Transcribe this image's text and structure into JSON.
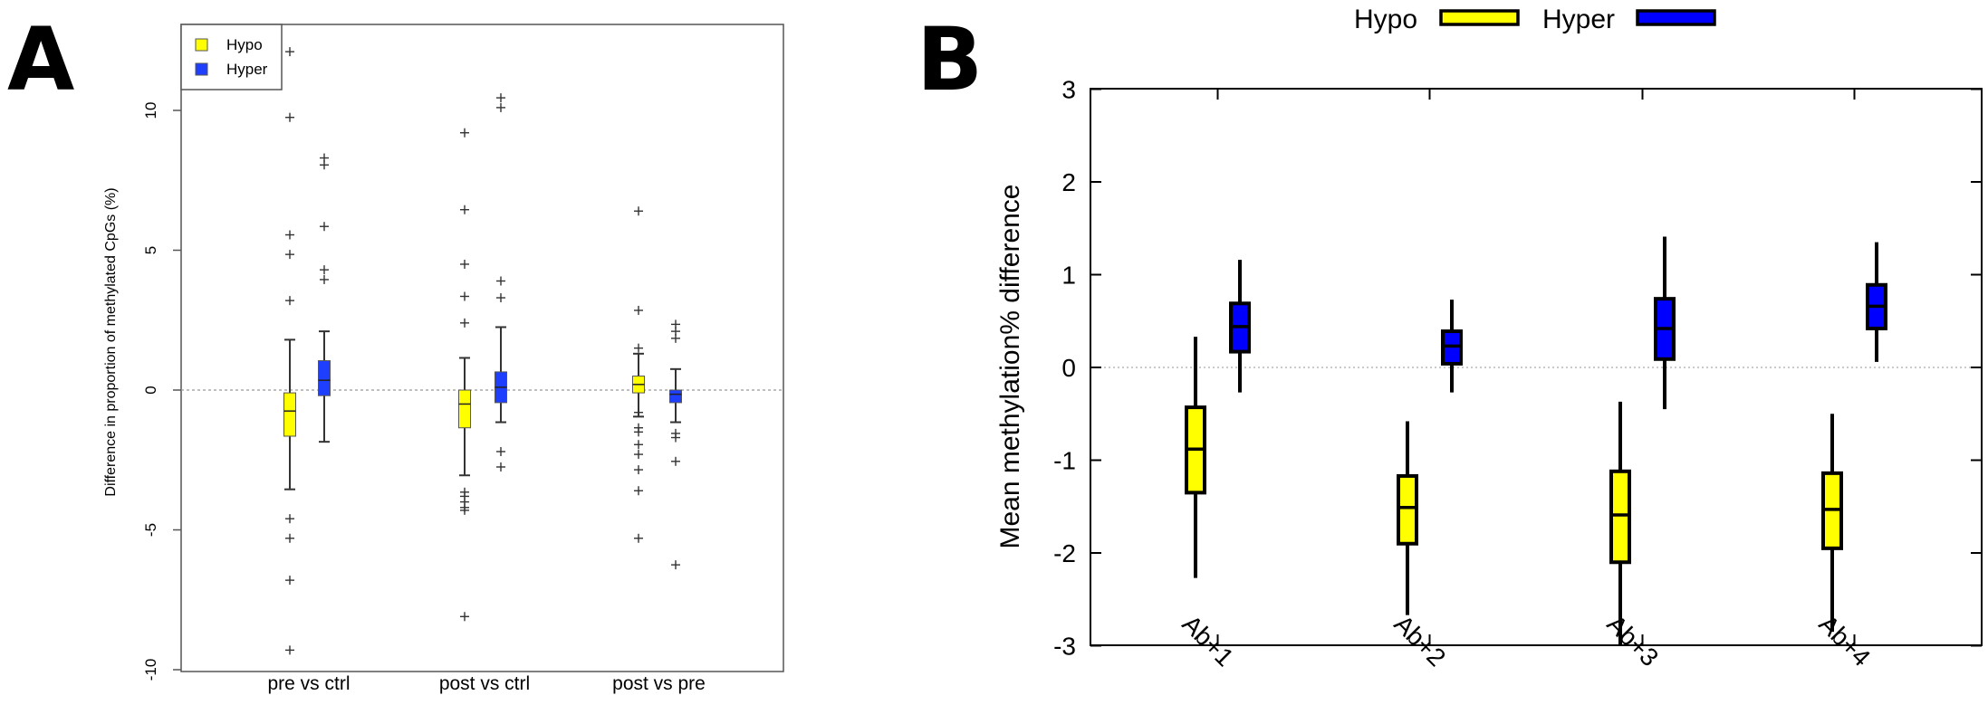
{
  "panels": {
    "a_letter": "A",
    "b_letter": "B"
  },
  "chart_data": [
    {
      "type": "box",
      "panel": "A",
      "title": "",
      "ylabel": "Difference in proportion of methylated CpGs (%)",
      "xlabel": "",
      "ylim": [
        -10,
        12.5
      ],
      "yticks": [
        "-10",
        "-5",
        "0",
        "5",
        "10"
      ],
      "categories": [
        "pre vs ctrl",
        "post vs ctrl",
        "post vs pre"
      ],
      "reference_line": 0,
      "legend": {
        "position": "top-left",
        "entries": [
          "Hypo",
          "Hyper"
        ]
      },
      "series": [
        {
          "name": "Hypo",
          "color": "#ffff00",
          "boxes": [
            {
              "whisker_low": -3.55,
              "q1": -1.65,
              "median": -0.75,
              "q3": -0.1,
              "whisker_high": 1.8,
              "outliers": [
                12.1,
                9.75,
                5.55,
                4.85,
                3.2,
                -4.6,
                -5.3,
                -6.8,
                -9.3
              ]
            },
            {
              "whisker_low": -3.05,
              "q1": -1.35,
              "median": -0.5,
              "q3": 0.0,
              "whisker_high": 1.15,
              "outliers": [
                9.2,
                6.45,
                4.5,
                3.35,
                2.4,
                -3.65,
                -3.8,
                -4.0,
                -4.2,
                -4.3,
                -8.1
              ]
            },
            {
              "whisker_low": -0.95,
              "q1": -0.1,
              "median": 0.2,
              "q3": 0.5,
              "whisker_high": 1.3,
              "outliers": [
                6.4,
                2.85,
                1.5,
                -0.8,
                -1.35,
                -1.5,
                -1.95,
                -2.3,
                -2.85,
                -3.6,
                -5.3
              ]
            }
          ]
        },
        {
          "name": "Hyper",
          "color": "#1f3fff",
          "boxes": [
            {
              "whisker_low": -1.85,
              "q1": -0.2,
              "median": 0.35,
              "q3": 1.05,
              "whisker_high": 2.1,
              "outliers": [
                8.3,
                8.05,
                5.85,
                4.3,
                3.95
              ]
            },
            {
              "whisker_low": -1.15,
              "q1": -0.45,
              "median": 0.1,
              "q3": 0.65,
              "whisker_high": 2.25,
              "outliers": [
                10.45,
                10.1,
                3.9,
                3.3,
                -2.2,
                -2.75
              ]
            },
            {
              "whisker_low": -1.15,
              "q1": -0.45,
              "median": -0.15,
              "q3": 0.0,
              "whisker_high": 0.75,
              "outliers": [
                2.35,
                2.1,
                1.85,
                -1.55,
                -1.7,
                -2.55,
                -6.25
              ]
            }
          ]
        }
      ]
    },
    {
      "type": "box",
      "panel": "B",
      "title": "",
      "ylabel": "Mean methylation% difference",
      "xlabel": "",
      "ylim": [
        -3,
        3
      ],
      "yticks": [
        "-3",
        "-2",
        "-1",
        "0",
        "1",
        "2",
        "3"
      ],
      "categories": [
        "Ab+1",
        "Ab+2",
        "Ab+3",
        "Ab+4"
      ],
      "reference_line": 0,
      "legend": {
        "position": "top",
        "entries": [
          "Hypo",
          "Hyper"
        ]
      },
      "series": [
        {
          "name": "Hypo",
          "color": "#ffff00",
          "boxes": [
            {
              "whisker_low": -2.27,
              "q1": -1.35,
              "median": -0.88,
              "q3": -0.43,
              "whisker_high": 0.33
            },
            {
              "whisker_low": -2.67,
              "q1": -1.9,
              "median": -1.51,
              "q3": -1.17,
              "whisker_high": -0.58
            },
            {
              "whisker_low": -3.0,
              "q1": -2.1,
              "median": -1.59,
              "q3": -1.12,
              "whisker_high": -0.37
            },
            {
              "whisker_low": -2.85,
              "q1": -1.95,
              "median": -1.53,
              "q3": -1.14,
              "whisker_high": -0.5
            }
          ]
        },
        {
          "name": "Hyper",
          "color": "#0000ff",
          "boxes": [
            {
              "whisker_low": -0.27,
              "q1": 0.17,
              "median": 0.44,
              "q3": 0.69,
              "whisker_high": 1.16
            },
            {
              "whisker_low": -0.27,
              "q1": 0.04,
              "median": 0.23,
              "q3": 0.39,
              "whisker_high": 0.73
            },
            {
              "whisker_low": -0.45,
              "q1": 0.09,
              "median": 0.42,
              "q3": 0.74,
              "whisker_high": 1.41
            },
            {
              "whisker_low": 0.06,
              "q1": 0.42,
              "median": 0.66,
              "q3": 0.89,
              "whisker_high": 1.35
            }
          ]
        }
      ]
    }
  ]
}
